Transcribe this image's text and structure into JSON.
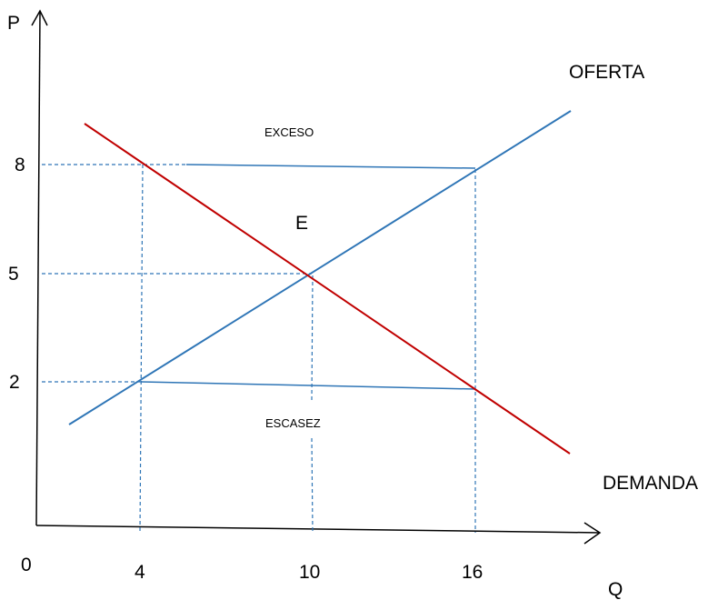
{
  "chart_data": {
    "type": "line",
    "title": "",
    "xlabel": "Q",
    "ylabel": "P",
    "origin_label": "0",
    "x_ticks": [
      "4",
      "10",
      "16"
    ],
    "y_ticks": [
      "8",
      "5",
      "2"
    ],
    "series": [
      {
        "name": "OFERTA",
        "points": [
          [
            4,
            2
          ],
          [
            10,
            5
          ],
          [
            16,
            8
          ]
        ]
      },
      {
        "name": "DEMANDA",
        "points": [
          [
            4,
            8
          ],
          [
            10,
            5
          ],
          [
            16,
            2
          ]
        ]
      }
    ],
    "equilibrium": {
      "label": "E",
      "x": 10,
      "y": 5
    },
    "gaps": [
      {
        "label": "EXCESO",
        "price": 8,
        "from_q": 4,
        "to_q": 16
      },
      {
        "label": "ESCASEZ",
        "price": 2,
        "from_q": 4,
        "to_q": 16
      }
    ],
    "colors": {
      "oferta": "#2e75b6",
      "demanda": "#c00000",
      "guides": "#2e75b6",
      "axes": "#000000"
    }
  }
}
